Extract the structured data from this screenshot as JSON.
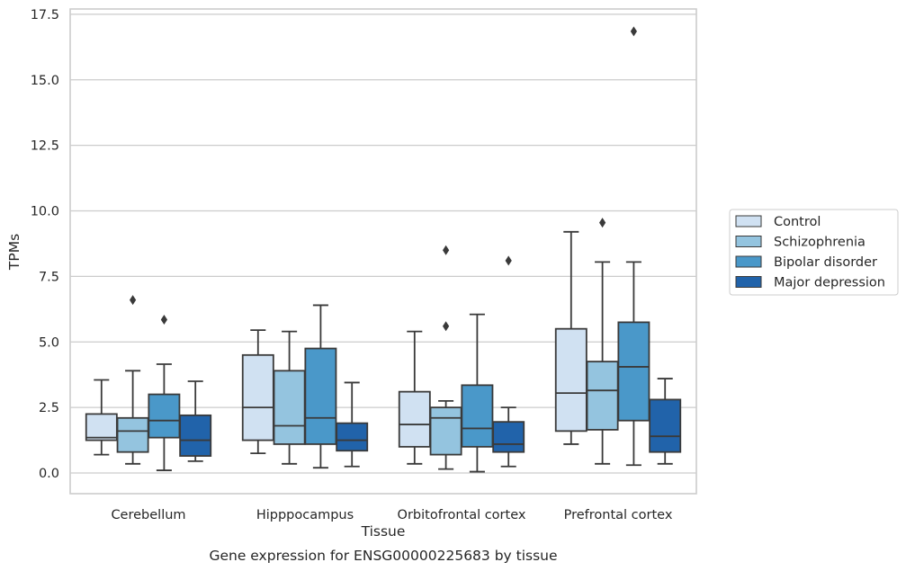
{
  "chart_data": {
    "type": "box",
    "title": "",
    "caption": "Gene expression for ENSG00000225683 by tissue",
    "xlabel": "Tissue",
    "ylabel": "TPMs",
    "ylim": [
      -0.8,
      17.6
    ],
    "yticks": [
      "0.0",
      "2.5",
      "5.0",
      "7.5",
      "10.0",
      "12.5",
      "15.0",
      "17.5"
    ],
    "grid": "horizontal",
    "legend_position": "right",
    "categories": [
      "Cerebellum",
      "Hipppocampus",
      "Orbitofrontal cortex",
      "Prefrontal cortex"
    ],
    "series": [
      {
        "name": "Control",
        "color": "#d0e1f2",
        "boxes": [
          {
            "whisker_low": 0.7,
            "q1": 1.25,
            "median": 1.35,
            "q3": 2.25,
            "whisker_high": 3.55,
            "outliers": []
          },
          {
            "whisker_low": 0.75,
            "q1": 1.25,
            "median": 2.5,
            "q3": 4.5,
            "whisker_high": 5.45,
            "outliers": []
          },
          {
            "whisker_low": 0.35,
            "q1": 1.0,
            "median": 1.85,
            "q3": 3.1,
            "whisker_high": 5.4,
            "outliers": []
          },
          {
            "whisker_low": 1.1,
            "q1": 1.6,
            "median": 3.05,
            "q3": 5.5,
            "whisker_high": 9.2,
            "outliers": []
          }
        ]
      },
      {
        "name": "Schizophrenia",
        "color": "#94c4df",
        "boxes": [
          {
            "whisker_low": 0.35,
            "q1": 0.8,
            "median": 1.6,
            "q3": 2.1,
            "whisker_high": 3.9,
            "outliers": [
              6.6
            ]
          },
          {
            "whisker_low": 0.35,
            "q1": 1.1,
            "median": 1.8,
            "q3": 3.9,
            "whisker_high": 5.4,
            "outliers": []
          },
          {
            "whisker_low": 0.15,
            "q1": 0.7,
            "median": 2.1,
            "q3": 2.5,
            "whisker_high": 2.75,
            "outliers": [
              8.5,
              5.6
            ]
          },
          {
            "whisker_low": 0.35,
            "q1": 1.65,
            "median": 3.15,
            "q3": 4.25,
            "whisker_high": 8.05,
            "outliers": [
              9.55
            ]
          }
        ]
      },
      {
        "name": "Bipolar disorder",
        "color": "#4a98c9",
        "boxes": [
          {
            "whisker_low": 0.1,
            "q1": 1.35,
            "median": 2.0,
            "q3": 3.0,
            "whisker_high": 4.15,
            "outliers": [
              5.85
            ]
          },
          {
            "whisker_low": 0.2,
            "q1": 1.1,
            "median": 2.1,
            "q3": 4.75,
            "whisker_high": 6.4,
            "outliers": []
          },
          {
            "whisker_low": 0.05,
            "q1": 1.0,
            "median": 1.7,
            "q3": 3.35,
            "whisker_high": 6.05,
            "outliers": []
          },
          {
            "whisker_low": 0.3,
            "q1": 2.0,
            "median": 4.05,
            "q3": 5.75,
            "whisker_high": 8.05,
            "outliers": [
              16.85
            ]
          }
        ]
      },
      {
        "name": "Major depression",
        "color": "#2163aa",
        "boxes": [
          {
            "whisker_low": 0.45,
            "q1": 0.65,
            "median": 1.25,
            "q3": 2.2,
            "whisker_high": 3.5,
            "outliers": []
          },
          {
            "whisker_low": 0.25,
            "q1": 0.85,
            "median": 1.25,
            "q3": 1.9,
            "whisker_high": 3.45,
            "outliers": []
          },
          {
            "whisker_low": 0.25,
            "q1": 0.8,
            "median": 1.1,
            "q3": 1.95,
            "whisker_high": 2.5,
            "outliers": [
              8.1
            ]
          },
          {
            "whisker_low": 0.35,
            "q1": 0.8,
            "median": 1.4,
            "q3": 2.8,
            "whisker_high": 3.6,
            "outliers": []
          }
        ]
      }
    ]
  }
}
